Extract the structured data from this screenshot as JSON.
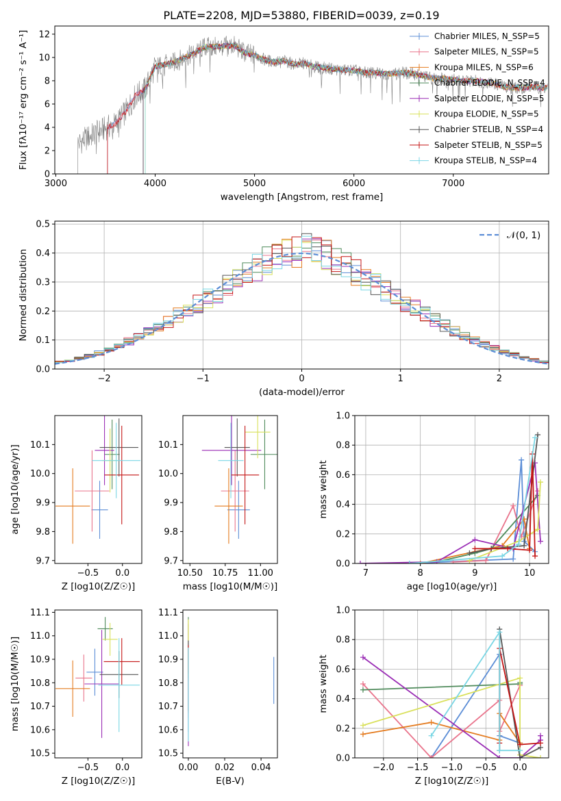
{
  "title": "PLATE=2208, MJD=53880, FIBERID=0039, z=0.19",
  "series_colors": [
    "#5b8dd6",
    "#e9738b",
    "#e47b1f",
    "#4e8a5a",
    "#9a2db5",
    "#d9e05a",
    "#555555",
    "#c41414",
    "#79d6e4"
  ],
  "chart_data": [
    {
      "type": "line",
      "panel": "spectrum",
      "xlabel": "wavelength [Angstrom, rest frame]",
      "ylabel": "Flux [fλ10⁻¹⁷ erg cm⁻² s⁻¹ A⁻¹]",
      "xlim": [
        2990,
        7960
      ],
      "ylim": [
        0,
        12.7
      ],
      "xticks": [
        "3000",
        "4000",
        "5000",
        "6000",
        "7000"
      ],
      "yticks": [
        "0",
        "2",
        "4",
        "6",
        "8",
        "10",
        "12"
      ],
      "grid": false,
      "legend": "top-right",
      "legend_entries": [
        "Chabrier MILES, N_SSP=5",
        "Salpeter MILES, N_SSP=5",
        "Kroupa MILES, N_SSP=6",
        "Chabrier ELODIE, N_SSP=4",
        "Salpeter ELODIE, N_SSP=5",
        "Kroupa ELODIE, N_SSP=5",
        "Chabrier STELIB, N_SSP=4",
        "Salpeter STELIB, N_SSP=5",
        "Kroupa STELIB, N_SSP=4"
      ],
      "data_x": [
        3220,
        3300,
        3400,
        3500,
        3600,
        3700,
        3800,
        3900,
        4000,
        4100,
        4200,
        4300,
        4400,
        4500,
        4600,
        4700,
        4800,
        4900,
        5000,
        5100,
        5200,
        5300,
        5400,
        5500,
        5600,
        5700,
        5800,
        5900,
        6000,
        6100,
        6200,
        6300,
        6400,
        6500,
        6600,
        6700,
        6800,
        6900,
        7000,
        7100,
        7200,
        7300,
        7400,
        7500,
        7600,
        7700,
        7800,
        7900
      ],
      "data_y": [
        2.6,
        3.0,
        3.5,
        3.9,
        4.3,
        5.3,
        6.7,
        7.3,
        9.2,
        9.4,
        9.6,
        10.0,
        10.4,
        10.9,
        10.9,
        11.0,
        11.0,
        10.4,
        10.2,
        9.8,
        9.6,
        9.7,
        9.4,
        9.5,
        9.2,
        9.1,
        9.0,
        8.9,
        8.9,
        8.7,
        8.7,
        8.6,
        8.6,
        8.7,
        8.6,
        8.4,
        8.2,
        8.2,
        8.1,
        8.0,
        8.0,
        7.9,
        7.8,
        7.5,
        7.4,
        7.4,
        7.5,
        7.4
      ],
      "model_starts": [
        3520,
        3520,
        3880,
        3880,
        3880,
        3900,
        3880,
        3520,
        3900
      ]
    },
    {
      "type": "histogram",
      "panel": "residuals",
      "xlabel": "(data-model)/error",
      "ylabel": "Normed distribution",
      "xlim": [
        -2.5,
        2.5
      ],
      "ylim": [
        0,
        0.51
      ],
      "xticks": [
        "−2",
        "−1",
        "0",
        "1",
        "2"
      ],
      "yticks": [
        "0.0",
        "0.1",
        "0.2",
        "0.3",
        "0.4",
        "0.5"
      ],
      "grid": true,
      "legend": "top-right",
      "legend_entries": [
        "𝒩(0, 1)"
      ],
      "bin_edges": [
        -2.5,
        -2.4,
        -2.3,
        -2.2,
        -2.1,
        -2.0,
        -1.9,
        -1.8,
        -1.7,
        -1.6,
        -1.5,
        -1.4,
        -1.3,
        -1.2,
        -1.1,
        -1.0,
        -0.9,
        -0.8,
        -0.7,
        -0.6,
        -0.5,
        -0.4,
        -0.3,
        -0.2,
        -0.1,
        0.0,
        0.1,
        0.2,
        0.3,
        0.4,
        0.5,
        0.6,
        0.7,
        0.8,
        0.9,
        1.0,
        1.1,
        1.2,
        1.3,
        1.4,
        1.5,
        1.6,
        1.7,
        1.8,
        1.9,
        2.0,
        2.1,
        2.2,
        2.3,
        2.4,
        2.5
      ],
      "hist_base": [
        0.025,
        0.03,
        0.038,
        0.045,
        0.055,
        0.065,
        0.08,
        0.095,
        0.11,
        0.125,
        0.145,
        0.165,
        0.185,
        0.205,
        0.225,
        0.245,
        0.265,
        0.285,
        0.31,
        0.33,
        0.35,
        0.37,
        0.385,
        0.395,
        0.405,
        0.41,
        0.4,
        0.39,
        0.375,
        0.355,
        0.335,
        0.315,
        0.29,
        0.27,
        0.25,
        0.23,
        0.21,
        0.19,
        0.17,
        0.15,
        0.13,
        0.115,
        0.1,
        0.085,
        0.072,
        0.06,
        0.05,
        0.04,
        0.032,
        0.025
      ],
      "gaussian": {
        "mean": 0,
        "sigma": 1
      }
    },
    {
      "type": "scatter",
      "panel": "age-vs-Z",
      "xlabel": "Z [log10(Z/Z☉)]",
      "ylabel": "age  [log10(age/yr)]",
      "xlim": [
        -0.98,
        0.28
      ],
      "ylim": [
        9.69,
        10.2
      ],
      "xticks": [
        "−0.5",
        "0.0"
      ],
      "yticks": [
        "9.7",
        "9.8",
        "9.9",
        "10.0",
        "10.1"
      ],
      "points": [
        {
          "x": -0.33,
          "y": 9.875,
          "xerr": 0.12,
          "yerr": 0.1
        },
        {
          "x": -0.44,
          "y": 9.94,
          "xerr": 0.25,
          "yerr": 0.14
        },
        {
          "x": -0.72,
          "y": 9.888,
          "xerr": 0.25,
          "yerr": 0.13
        },
        {
          "x": -0.15,
          "y": 10.066,
          "xerr": 0.11,
          "yerr": 0.12
        },
        {
          "x": -0.26,
          "y": 10.08,
          "xerr": 0.14,
          "yerr": 0.12
        },
        {
          "x": -0.18,
          "y": 10.045,
          "xerr": 0.11,
          "yerr": 0.11
        },
        {
          "x": -0.05,
          "y": 10.09,
          "xerr": 0.28,
          "yerr": 0.1
        },
        {
          "x": -0.01,
          "y": 9.995,
          "xerr": 0.25,
          "yerr": 0.17
        },
        {
          "x": -0.09,
          "y": 10.045,
          "xerr": 0.35,
          "yerr": 0.13
        }
      ]
    },
    {
      "type": "scatter",
      "panel": "age-vs-mass",
      "xlabel": "mass [log10(M/M☉)]",
      "ylabel": "",
      "xlim": [
        10.45,
        11.12
      ],
      "ylim": [
        9.69,
        10.2
      ],
      "xticks": [
        "10.50",
        "10.75",
        "11.00"
      ],
      "yticks": [
        "9.7",
        "9.8",
        "9.9",
        "10.0",
        "10.1"
      ],
      "points": [
        {
          "x": 10.845,
          "y": 9.875,
          "xerr": 0.08,
          "yerr": 0.1
        },
        {
          "x": 10.82,
          "y": 9.94,
          "xerr": 0.1,
          "yerr": 0.14
        },
        {
          "x": 10.775,
          "y": 9.888,
          "xerr": 0.1,
          "yerr": 0.13
        },
        {
          "x": 11.03,
          "y": 10.066,
          "xerr": 0.1,
          "yerr": 0.12
        },
        {
          "x": 10.795,
          "y": 10.08,
          "xerr": 0.21,
          "yerr": 0.12
        },
        {
          "x": 10.98,
          "y": 10.143,
          "xerr": 0.09,
          "yerr": 0.09
        },
        {
          "x": 10.835,
          "y": 10.09,
          "xerr": 0.09,
          "yerr": 0.1
        },
        {
          "x": 10.89,
          "y": 9.995,
          "xerr": 0.1,
          "yerr": 0.17
        },
        {
          "x": 10.79,
          "y": 10.045,
          "xerr": 0.09,
          "yerr": 0.13
        }
      ]
    },
    {
      "type": "line",
      "panel": "mass-weight-vs-age",
      "xlabel": "age  [log10(age/yr)]",
      "ylabel": "mass weight",
      "xlim": [
        6.8,
        10.35
      ],
      "ylim": [
        0,
        1.0
      ],
      "xticks": [
        "7",
        "8",
        "9",
        "10"
      ],
      "yticks": [
        "0.0",
        "0.2",
        "0.4",
        "0.6",
        "0.8",
        "1.0"
      ],
      "grid": true,
      "series": [
        {
          "x": [
            7.8,
            9.7,
            9.85,
            9.9,
            10.1
          ],
          "y": [
            0.0,
            0.03,
            0.7,
            0.15,
            0.08
          ]
        },
        {
          "x": [
            8.6,
            9.2,
            9.7,
            9.85,
            10.15
          ],
          "y": [
            0.01,
            0.02,
            0.39,
            0.18,
            0.49
          ]
        },
        {
          "x": [
            8.0,
            9.0,
            9.5,
            9.9,
            10.0
          ],
          "y": [
            0.0,
            0.08,
            0.12,
            0.3,
            0.1
          ]
        },
        {
          "x": [
            8.3,
            9.0,
            9.3,
            10.15
          ],
          "y": [
            0.01,
            0.07,
            0.1,
            0.46
          ]
        },
        {
          "x": [
            6.9,
            8.3,
            9.0,
            9.7,
            10.1,
            10.2
          ],
          "y": [
            0.0,
            0.01,
            0.16,
            0.1,
            0.68,
            0.15
          ]
        },
        {
          "x": [
            8.9,
            9.8,
            10.15,
            10.2
          ],
          "y": [
            0.02,
            0.15,
            0.23,
            0.55
          ]
        },
        {
          "x": [
            8.9,
            9.3,
            9.9,
            10.15
          ],
          "y": [
            0.07,
            0.1,
            0.12,
            0.87
          ]
        },
        {
          "x": [
            9.0,
            9.6,
            10.0,
            10.05,
            10.1
          ],
          "y": [
            0.1,
            0.1,
            0.09,
            0.74,
            0.05
          ]
        },
        {
          "x": [
            7.8,
            9.5,
            9.8,
            10.1
          ],
          "y": [
            0.0,
            0.05,
            0.13,
            0.85
          ]
        }
      ]
    },
    {
      "type": "scatter",
      "panel": "mass-vs-Z",
      "xlabel": "Z [log10(Z/Z☉)]",
      "ylabel": "mass [log10(M/M☉)]",
      "xlim": [
        -0.98,
        0.28
      ],
      "ylim": [
        10.48,
        11.11
      ],
      "xticks": [
        "−0.5",
        "0.0"
      ],
      "yticks": [
        "10.5",
        "10.6",
        "10.7",
        "10.8",
        "10.9",
        "11.0",
        "11.1"
      ],
      "points": [
        {
          "x": -0.4,
          "y": 10.845,
          "xerr": 0.12,
          "yerr": 0.1
        },
        {
          "x": -0.56,
          "y": 10.82,
          "xerr": 0.12,
          "yerr": 0.1
        },
        {
          "x": -0.72,
          "y": 10.775,
          "xerr": 0.25,
          "yerr": 0.12
        },
        {
          "x": -0.25,
          "y": 11.03,
          "xerr": 0.11,
          "yerr": 0.05
        },
        {
          "x": -0.3,
          "y": 10.795,
          "xerr": 0.25,
          "yerr": 0.23
        },
        {
          "x": -0.18,
          "y": 10.985,
          "xerr": 0.11,
          "yerr": 0.07
        },
        {
          "x": -0.05,
          "y": 10.835,
          "xerr": 0.28,
          "yerr": 0.1
        },
        {
          "x": -0.01,
          "y": 10.89,
          "xerr": 0.26,
          "yerr": 0.1
        },
        {
          "x": -0.05,
          "y": 10.79,
          "xerr": 0.3,
          "yerr": 0.2
        }
      ]
    },
    {
      "type": "scatter",
      "panel": "mass-vs-EBV",
      "xlabel": "E(B-V)",
      "ylabel": "",
      "xlim": [
        -0.003,
        0.049
      ],
      "ylim": [
        10.48,
        11.11
      ],
      "xticks": [
        "0.00",
        "0.02",
        "0.04"
      ],
      "yticks": [
        "10.5",
        "10.6",
        "10.7",
        "10.8",
        "10.9",
        "11.0",
        "11.1"
      ],
      "points": [
        {
          "x": 0.0,
          "y": 10.82,
          "xerr": 0,
          "yerr": 0.23
        },
        {
          "x": 0.0,
          "y": 10.85,
          "xerr": 0,
          "yerr": 0.2
        },
        {
          "x": 0.0,
          "y": 10.87,
          "xerr": 0,
          "yerr": 0.2
        },
        {
          "x": 0.0,
          "y": 10.95,
          "xerr": 0,
          "yerr": 0.13
        },
        {
          "x": 0.0,
          "y": 10.75,
          "xerr": 0,
          "yerr": 0.22
        },
        {
          "x": 0.0,
          "y": 10.95,
          "xerr": 0,
          "yerr": 0.12
        },
        {
          "x": 0.0,
          "y": 10.83,
          "xerr": 0,
          "yerr": 0.15
        },
        {
          "x": 0.0,
          "y": 10.9,
          "xerr": 0,
          "yerr": 0.06
        },
        {
          "x": 0.0,
          "y": 10.75,
          "xerr": 0,
          "yerr": 0.2
        },
        {
          "x": 0.047,
          "y": 10.81,
          "xerr": 0,
          "yerr": 0.1
        }
      ]
    },
    {
      "type": "line",
      "panel": "mass-weight-vs-Z",
      "xlabel": "Z [log10(Z/Z☉)]",
      "ylabel": "mass weight",
      "xlim": [
        -2.42,
        0.42
      ],
      "ylim": [
        0,
        1.0
      ],
      "xticks": [
        "−2.0",
        "−1.5",
        "−1.0",
        "−0.5",
        "0.0"
      ],
      "yticks": [
        "0.0",
        "0.2",
        "0.4",
        "0.6",
        "0.8",
        "1.0"
      ],
      "grid": true,
      "series": [
        {
          "x": [
            -1.3,
            -0.3,
            -0.3,
            0.0
          ],
          "y": [
            0.0,
            0.7,
            0.15,
            0.1
          ]
        },
        {
          "x": [
            -2.3,
            -1.3,
            -0.3,
            -0.3,
            0.0
          ],
          "y": [
            0.5,
            0.0,
            0.39,
            0.18,
            0.49
          ]
        },
        {
          "x": [
            -2.3,
            -1.3,
            -0.3,
            -0.3,
            0.0
          ],
          "y": [
            0.16,
            0.24,
            0.12,
            0.3,
            0.1
          ]
        },
        {
          "x": [
            -2.3,
            0.0,
            0.0
          ],
          "y": [
            0.46,
            0.5,
            0.51
          ]
        },
        {
          "x": [
            -2.3,
            -0.3,
            0.0,
            0.3,
            0.3
          ],
          "y": [
            0.68,
            0.0,
            0.0,
            0.12,
            0.15
          ]
        },
        {
          "x": [
            -2.3,
            0.0,
            0.0,
            0.3
          ],
          "y": [
            0.22,
            0.54,
            0.02,
            0.0
          ]
        },
        {
          "x": [
            -0.3,
            -0.3,
            0.0,
            0.3
          ],
          "y": [
            0.05,
            0.87,
            0.0,
            0.07
          ]
        },
        {
          "x": [
            -0.3,
            -0.3,
            0.0,
            0.3
          ],
          "y": [
            0.1,
            0.74,
            0.09,
            0.1
          ]
        },
        {
          "x": [
            -1.3,
            -0.3,
            -0.3,
            0.0
          ],
          "y": [
            0.15,
            0.85,
            0.05,
            0.05
          ]
        }
      ]
    }
  ]
}
